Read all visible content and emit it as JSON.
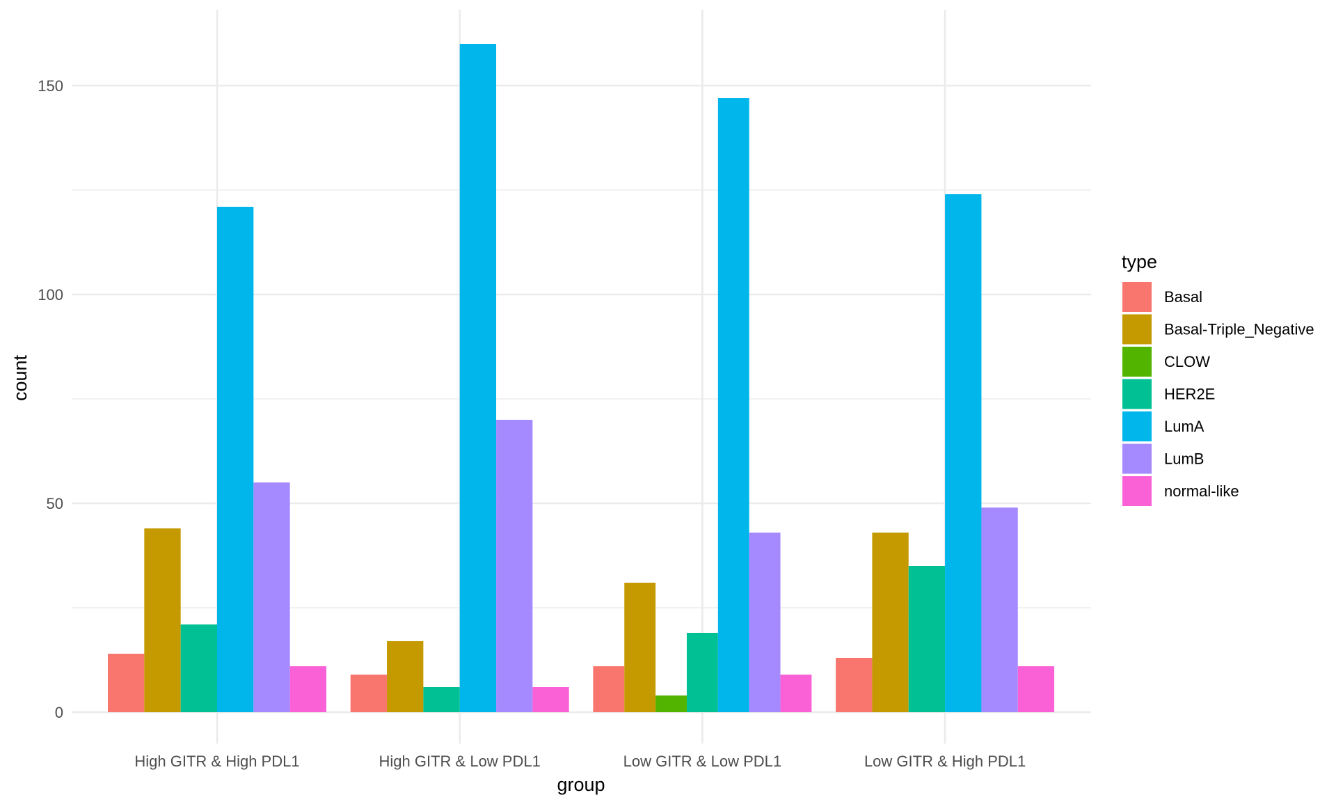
{
  "chart_data": {
    "type": "bar",
    "xlabel": "group",
    "ylabel": "count",
    "categories": [
      "High GITR & High PDL1",
      "High GITR & Low PDL1",
      "Low GITR & Low PDL1",
      "Low GITR & High PDL1"
    ],
    "ylim": [
      0,
      164
    ],
    "yticks": [
      0,
      50,
      100,
      150
    ],
    "yticklabels": [
      "0",
      "50",
      "100",
      "150"
    ],
    "grid": true,
    "legend_title": "type",
    "legend_position": "right",
    "series": [
      {
        "name": "Basal",
        "color": "#F8766D",
        "values": [
          14,
          9,
          11,
          13
        ]
      },
      {
        "name": "Basal-Triple_Negative",
        "color": "#C49A00",
        "values": [
          44,
          17,
          31,
          43
        ]
      },
      {
        "name": "CLOW",
        "color": "#53B400",
        "values": [
          null,
          null,
          4,
          null
        ]
      },
      {
        "name": "HER2E",
        "color": "#00C094",
        "values": [
          21,
          6,
          19,
          35
        ]
      },
      {
        "name": "LumA",
        "color": "#00B6EB",
        "values": [
          121,
          160,
          147,
          124
        ]
      },
      {
        "name": "LumB",
        "color": "#A58AFF",
        "values": [
          55,
          70,
          43,
          49
        ]
      },
      {
        "name": "normal-like",
        "color": "#FB61D7",
        "values": [
          11,
          6,
          9,
          11
        ]
      }
    ]
  }
}
